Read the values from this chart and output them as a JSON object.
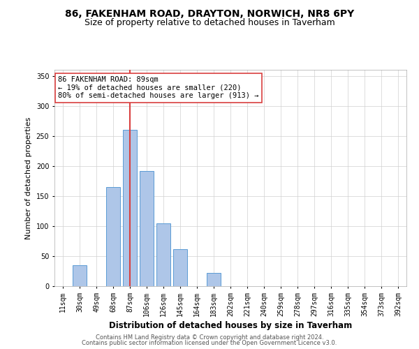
{
  "title1": "86, FAKENHAM ROAD, DRAYTON, NORWICH, NR8 6PY",
  "title2": "Size of property relative to detached houses in Taverham",
  "xlabel": "Distribution of detached houses by size in Taverham",
  "ylabel": "Number of detached properties",
  "categories": [
    "11sqm",
    "30sqm",
    "49sqm",
    "68sqm",
    "87sqm",
    "106sqm",
    "126sqm",
    "145sqm",
    "164sqm",
    "183sqm",
    "202sqm",
    "221sqm",
    "240sqm",
    "259sqm",
    "278sqm",
    "297sqm",
    "316sqm",
    "335sqm",
    "354sqm",
    "373sqm",
    "392sqm"
  ],
  "values": [
    0,
    35,
    0,
    165,
    260,
    192,
    105,
    62,
    0,
    22,
    0,
    0,
    0,
    0,
    0,
    0,
    0,
    0,
    0,
    0,
    0
  ],
  "bar_color": "#aec6e8",
  "bar_edge_color": "#5b9bd5",
  "highlight_index": 4,
  "highlight_color": "#d94040",
  "annotation_text": "86 FAKENHAM ROAD: 89sqm\n← 19% of detached houses are smaller (220)\n80% of semi-detached houses are larger (913) →",
  "annotation_box_color": "#ffffff",
  "annotation_box_edge_color": "#d94040",
  "ylim": [
    0,
    360
  ],
  "yticks": [
    0,
    50,
    100,
    150,
    200,
    250,
    300,
    350
  ],
  "footer1": "Contains HM Land Registry data © Crown copyright and database right 2024.",
  "footer2": "Contains public sector information licensed under the Open Government Licence v3.0.",
  "title1_fontsize": 10,
  "title2_fontsize": 9,
  "xlabel_fontsize": 8.5,
  "ylabel_fontsize": 8,
  "annotation_fontsize": 7.5,
  "tick_fontsize": 7
}
